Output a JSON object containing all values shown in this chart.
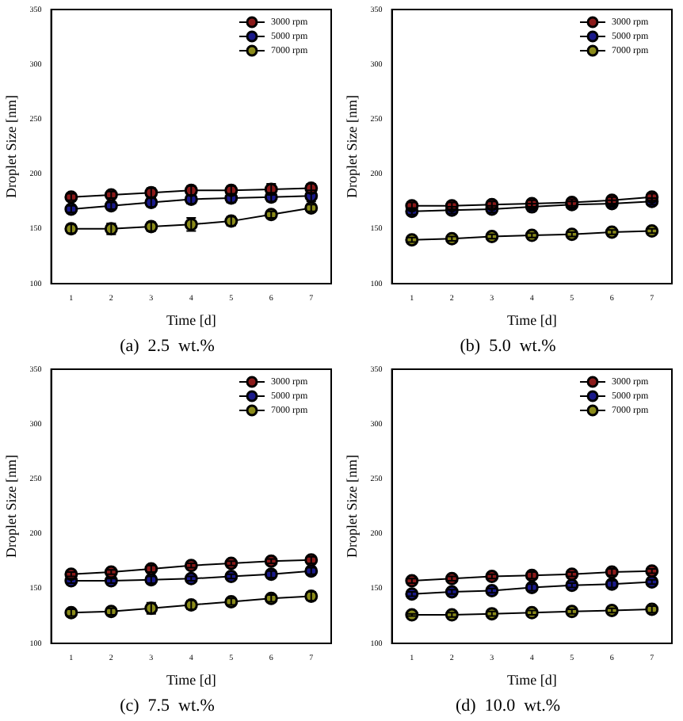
{
  "chart_data": [
    {
      "type": "line",
      "title": "(a)  2.5  wt.%",
      "xlabel": "Time [d]",
      "ylabel": "Droplet Size [nm]",
      "categories": [
        "1",
        "2",
        "3",
        "4",
        "5",
        "6",
        "7"
      ],
      "ylim": [
        100,
        350
      ],
      "yticks": [
        100,
        150,
        200,
        250,
        300,
        350
      ],
      "grid": false,
      "legend": "top right",
      "marker": "circle",
      "series": [
        {
          "name": "3000 rpm",
          "color": "#8b1a1a",
          "values": [
            179,
            181,
            183,
            185,
            185,
            186,
            187
          ],
          "errors": [
            3,
            3,
            4,
            4,
            4,
            5,
            4
          ]
        },
        {
          "name": "5000 rpm",
          "color": "#1a1a8b",
          "values": [
            168,
            171,
            174,
            177,
            178,
            179,
            180
          ],
          "errors": [
            3,
            3,
            4,
            4,
            4,
            4,
            5
          ]
        },
        {
          "name": "7000 rpm",
          "color": "#8b8b1a",
          "values": [
            150,
            150,
            152,
            154,
            157,
            163,
            169
          ],
          "errors": [
            4,
            5,
            4,
            6,
            4,
            3,
            3
          ]
        }
      ]
    },
    {
      "type": "line",
      "title": "(b)  5.0  wt.%",
      "xlabel": "Time [d]",
      "ylabel": "Droplet Size [nm]",
      "categories": [
        "1",
        "2",
        "3",
        "4",
        "5",
        "6",
        "7"
      ],
      "ylim": [
        100,
        350
      ],
      "yticks": [
        100,
        150,
        200,
        250,
        300,
        350
      ],
      "grid": false,
      "legend": "top right",
      "marker": "circle",
      "series": [
        {
          "name": "3000 rpm",
          "color": "#8b1a1a",
          "values": [
            171,
            171,
            172,
            173,
            174,
            176,
            179
          ],
          "errors": [
            3,
            3,
            3,
            3,
            3,
            3,
            3
          ]
        },
        {
          "name": "5000 rpm",
          "color": "#1a1a8b",
          "values": [
            166,
            167,
            168,
            170,
            172,
            173,
            175
          ],
          "errors": [
            3,
            3,
            3,
            3,
            3,
            3,
            3
          ]
        },
        {
          "name": "7000 rpm",
          "color": "#8b8b1a",
          "values": [
            140,
            141,
            143,
            144,
            145,
            147,
            148
          ],
          "errors": [
            2,
            2,
            2,
            2,
            2,
            2,
            2
          ]
        }
      ]
    },
    {
      "type": "line",
      "title": "(c)  7.5  wt.%",
      "xlabel": "Time [d]",
      "ylabel": "Droplet Size [nm]",
      "categories": [
        "1",
        "2",
        "3",
        "4",
        "5",
        "6",
        "7"
      ],
      "ylim": [
        100,
        350
      ],
      "yticks": [
        100,
        150,
        200,
        250,
        300,
        350
      ],
      "grid": false,
      "legend": "top right",
      "marker": "circle",
      "series": [
        {
          "name": "3000 rpm",
          "color": "#8b1a1a",
          "values": [
            163,
            165,
            168,
            171,
            173,
            175,
            176
          ],
          "errors": [
            2,
            2,
            3,
            2,
            2,
            2,
            3
          ]
        },
        {
          "name": "5000 rpm",
          "color": "#1a1a8b",
          "values": [
            157,
            157,
            158,
            159,
            161,
            163,
            166
          ],
          "errors": [
            2,
            2,
            3,
            2,
            2,
            3,
            3
          ]
        },
        {
          "name": "7000 rpm",
          "color": "#8b8b1a",
          "values": [
            128,
            129,
            132,
            135,
            138,
            141,
            143
          ],
          "errors": [
            3,
            3,
            5,
            4,
            3,
            3,
            4
          ]
        }
      ]
    },
    {
      "type": "line",
      "title": "(d)  10.0  wt.%",
      "xlabel": "Time [d]",
      "ylabel": "Droplet Size [nm]",
      "categories": [
        "1",
        "2",
        "3",
        "4",
        "5",
        "6",
        "7"
      ],
      "ylim": [
        100,
        350
      ],
      "yticks": [
        100,
        150,
        200,
        250,
        300,
        350
      ],
      "grid": false,
      "legend": "top right",
      "marker": "circle",
      "series": [
        {
          "name": "3000 rpm",
          "color": "#8b1a1a",
          "values": [
            157,
            159,
            161,
            162,
            163,
            165,
            166
          ],
          "errors": [
            2,
            2,
            2,
            3,
            2,
            3,
            2
          ]
        },
        {
          "name": "5000 rpm",
          "color": "#1a1a8b",
          "values": [
            145,
            147,
            148,
            151,
            153,
            154,
            156
          ],
          "errors": [
            2,
            2,
            2,
            3,
            2,
            3,
            2
          ]
        },
        {
          "name": "7000 rpm",
          "color": "#8b8b1a",
          "values": [
            126,
            126,
            127,
            128,
            129,
            130,
            131
          ],
          "errors": [
            1,
            2,
            2,
            2,
            2,
            2,
            3
          ]
        }
      ]
    }
  ]
}
